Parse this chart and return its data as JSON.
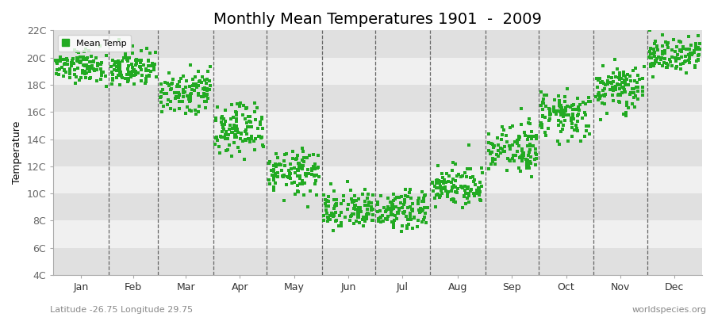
{
  "title": "Monthly Mean Temperatures 1901  -  2009",
  "ylabel": "Temperature",
  "xlabel_labels": [
    "Jan",
    "Feb",
    "Mar",
    "Apr",
    "May",
    "Jun",
    "Jul",
    "Aug",
    "Sep",
    "Oct",
    "Nov",
    "Dec"
  ],
  "ytick_labels": [
    "4C",
    "6C",
    "8C",
    "10C",
    "12C",
    "14C",
    "16C",
    "18C",
    "20C",
    "22C"
  ],
  "ytick_values": [
    4,
    6,
    8,
    10,
    12,
    14,
    16,
    18,
    20,
    22
  ],
  "ylim": [
    4,
    22
  ],
  "dot_color": "#22aa22",
  "background_color": "#f0f0f0",
  "band_light": "#f0f0f0",
  "band_dark": "#e0e0e0",
  "subtitle": "Latitude -26.75 Longitude 29.75",
  "watermark": "worldspecies.org",
  "legend_label": "Mean Temp",
  "title_fontsize": 14,
  "label_fontsize": 9,
  "tick_fontsize": 9,
  "monthly_means": [
    19.5,
    19.3,
    17.5,
    14.8,
    11.5,
    8.7,
    8.9,
    10.5,
    13.2,
    15.8,
    17.8,
    20.2
  ],
  "monthly_std_interannual": [
    0.6,
    0.7,
    0.8,
    0.9,
    0.9,
    0.8,
    0.8,
    0.8,
    0.9,
    0.9,
    0.8,
    0.7
  ],
  "n_years": 109,
  "days_in_month": [
    31,
    28,
    31,
    30,
    31,
    30,
    31,
    31,
    30,
    31,
    30,
    31
  ]
}
